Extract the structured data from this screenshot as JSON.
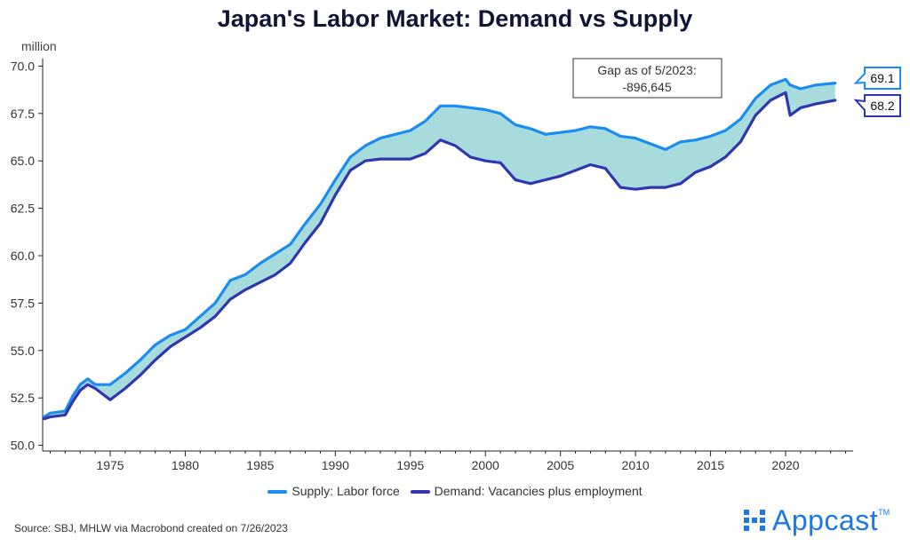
{
  "chart_data": {
    "type": "line",
    "title": "Japan's Labor Market: Demand vs Supply",
    "ylabel": "million",
    "xlabel": "",
    "xlim": [
      1970.5,
      2024.5
    ],
    "ylim": [
      49.7,
      70.3
    ],
    "y_ticks": [
      "70.0",
      "67.5",
      "65.0",
      "62.5",
      "60.0",
      "57.5",
      "55.0",
      "52.5",
      "50.0"
    ],
    "y_tick_values": [
      70.0,
      67.5,
      65.0,
      62.5,
      60.0,
      57.5,
      55.0,
      52.5,
      50.0
    ],
    "x_ticks": [
      "1975",
      "1980",
      "1985",
      "1990",
      "1995",
      "2000",
      "2005",
      "2010",
      "2015",
      "2020"
    ],
    "x_tick_values": [
      1975,
      1980,
      1985,
      1990,
      1995,
      2000,
      2005,
      2010,
      2015,
      2020
    ],
    "gap_fill_color": "#a8dcdc",
    "series": [
      {
        "name": "Supply: Labor force",
        "color": "#1b8cf2",
        "end_label": "69.1",
        "x": [
          1970.6,
          1971,
          1972,
          1972.5,
          1973,
          1973.5,
          1974,
          1975,
          1976,
          1977,
          1978,
          1979,
          1980,
          1981,
          1982,
          1983,
          1984,
          1985,
          1986,
          1987,
          1988,
          1989,
          1990,
          1991,
          1992,
          1993,
          1994,
          1995,
          1996,
          1997,
          1998,
          1999,
          2000,
          2001,
          2002,
          2003,
          2004,
          2005,
          2006,
          2007,
          2008,
          2009,
          2010,
          2011,
          2012,
          2013,
          2014,
          2015,
          2016,
          2017,
          2018,
          2019,
          2020,
          2020.3,
          2021,
          2022,
          2023.3
        ],
        "values": [
          51.5,
          51.7,
          51.8,
          52.6,
          53.2,
          53.5,
          53.2,
          53.2,
          53.8,
          54.5,
          55.3,
          55.8,
          56.1,
          56.8,
          57.5,
          58.7,
          59.0,
          59.6,
          60.1,
          60.6,
          61.7,
          62.7,
          64.0,
          65.2,
          65.8,
          66.2,
          66.4,
          66.6,
          67.1,
          67.9,
          67.9,
          67.8,
          67.7,
          67.5,
          66.9,
          66.7,
          66.4,
          66.5,
          66.6,
          66.8,
          66.7,
          66.3,
          66.2,
          65.9,
          65.6,
          66.0,
          66.1,
          66.3,
          66.6,
          67.2,
          68.3,
          69.0,
          69.3,
          69.0,
          68.8,
          69.0,
          69.1
        ]
      },
      {
        "name": "Demand: Vacancies plus employment",
        "color": "#2f36b0",
        "end_label": "68.2",
        "x": [
          1970.6,
          1971,
          1972,
          1972.5,
          1973,
          1973.5,
          1974,
          1975,
          1976,
          1977,
          1978,
          1979,
          1980,
          1981,
          1982,
          1983,
          1984,
          1985,
          1986,
          1987,
          1988,
          1989,
          1990,
          1991,
          1992,
          1993,
          1994,
          1995,
          1996,
          1997,
          1998,
          1999,
          2000,
          2001,
          2002,
          2003,
          2004,
          2005,
          2006,
          2007,
          2008,
          2009,
          2010,
          2011,
          2012,
          2013,
          2014,
          2015,
          2016,
          2017,
          2018,
          2019,
          2020,
          2020.3,
          2021,
          2022,
          2023.3
        ],
        "values": [
          51.4,
          51.5,
          51.6,
          52.3,
          52.9,
          53.2,
          53.0,
          52.4,
          53.0,
          53.7,
          54.5,
          55.2,
          55.7,
          56.2,
          56.8,
          57.7,
          58.2,
          58.6,
          59.0,
          59.6,
          60.7,
          61.7,
          63.2,
          64.5,
          65.0,
          65.1,
          65.1,
          65.1,
          65.4,
          66.1,
          65.8,
          65.2,
          65.0,
          64.9,
          64.0,
          63.8,
          64.0,
          64.2,
          64.5,
          64.8,
          64.6,
          63.6,
          63.5,
          63.6,
          63.6,
          63.8,
          64.4,
          64.7,
          65.2,
          66.0,
          67.4,
          68.2,
          68.6,
          67.4,
          67.8,
          68.0,
          68.2
        ]
      }
    ],
    "annotation": {
      "line1": "Gap as of 5/2023:",
      "line2": "-896,645"
    },
    "legend_position": "bottom-center"
  },
  "footer": {
    "source": "Source: SBJ, MHLW via Macrobond created on 7/26/2023",
    "logo_text": "Appcast",
    "logo_tm": "TM"
  }
}
